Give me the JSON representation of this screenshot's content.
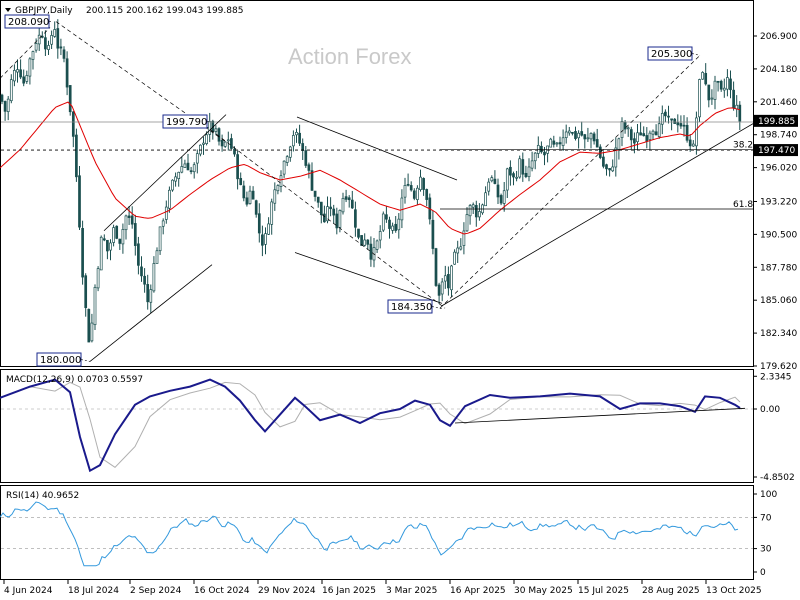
{
  "header": {
    "symbol": "GBPJPY,Daily",
    "ohlc": "200.115 200.162 199.043 199.885"
  },
  "watermark": "Action Forex",
  "macd_label": "MACD(12,26,9) 0.0703 0.5597",
  "rsi_label": "RSI(14) 40.9652",
  "colors": {
    "candle": "#1a4f4f",
    "ma": "#e00000",
    "macd_main": "#1a1a8c",
    "macd_signal": "#b0b0b0",
    "rsi": "#3399dd",
    "current_price_bg": "#000000",
    "level_197_bg": "#000000"
  },
  "chart_data": [
    {
      "type": "candlestick",
      "title": "",
      "ylim": [
        179.62,
        208.6
      ],
      "y_ticks": [
        "206.900",
        "204.180",
        "201.460",
        "198.740",
        "196.020",
        "193.220",
        "190.500",
        "187.780",
        "185.060",
        "182.340",
        "179.620"
      ],
      "x_ticks": [
        "4 Jun 2024",
        "18 Jul 2024",
        "2 Sep 2024",
        "16 Oct 2024",
        "29 Nov 2024",
        "16 Jan 2025",
        "3 Mar 2025",
        "16 Apr 2025",
        "30 May 2025",
        "15 Jul 2025",
        "28 Aug 2025",
        "13 Oct 2025"
      ],
      "last_price": "199.885",
      "level_price": "197.470",
      "annotations": [
        {
          "label": "208.090",
          "value": 208.09
        },
        {
          "label": "199.790",
          "value": 199.79
        },
        {
          "label": "180.000",
          "value": 180.0
        },
        {
          "label": "184.350",
          "value": 184.35
        },
        {
          "label": "205.300",
          "value": 205.3
        }
      ],
      "fib_labels": [
        "38.2",
        "61.8"
      ],
      "fib_levels": [
        197.5,
        192.6
      ],
      "close_path": [
        [
          0,
          202.0
        ],
        [
          6,
          200.5
        ],
        [
          12,
          203.5
        ],
        [
          18,
          204.5
        ],
        [
          24,
          203.0
        ],
        [
          30,
          205.0
        ],
        [
          36,
          206.5
        ],
        [
          42,
          207.2
        ],
        [
          48,
          205.5
        ],
        [
          54,
          208.0
        ],
        [
          58,
          206.0
        ],
        [
          64,
          205.0
        ],
        [
          70,
          201.0
        ],
        [
          74,
          198.0
        ],
        [
          78,
          193.5
        ],
        [
          82,
          188.0
        ],
        [
          86,
          184.0
        ],
        [
          90,
          181.0
        ],
        [
          94,
          185.5
        ],
        [
          98,
          188.0
        ],
        [
          102,
          190.5
        ],
        [
          108,
          189.0
        ],
        [
          114,
          191.0
        ],
        [
          120,
          190.0
        ],
        [
          126,
          192.0
        ],
        [
          132,
          191.5
        ],
        [
          138,
          188.0
        ],
        [
          144,
          186.5
        ],
        [
          148,
          184.8
        ],
        [
          152,
          187.0
        ],
        [
          156,
          189.0
        ],
        [
          162,
          191.5
        ],
        [
          168,
          193.5
        ],
        [
          174,
          195.0
        ],
        [
          180,
          196.0
        ],
        [
          186,
          196.5
        ],
        [
          192,
          195.5
        ],
        [
          198,
          197.0
        ],
        [
          204,
          198.5
        ],
        [
          210,
          199.5
        ],
        [
          216,
          198.8
        ],
        [
          222,
          197.5
        ],
        [
          228,
          198.5
        ],
        [
          234,
          197.0
        ],
        [
          240,
          194.5
        ],
        [
          246,
          193.0
        ],
        [
          252,
          194.5
        ],
        [
          258,
          191.0
        ],
        [
          264,
          189.5
        ],
        [
          270,
          192.5
        ],
        [
          276,
          194.5
        ],
        [
          282,
          196.0
        ],
        [
          288,
          197.5
        ],
        [
          294,
          199.0
        ],
        [
          300,
          198.0
        ],
        [
          306,
          196.5
        ],
        [
          312,
          194.5
        ],
        [
          318,
          193.0
        ],
        [
          324,
          191.5
        ],
        [
          330,
          193.0
        ],
        [
          336,
          191.0
        ],
        [
          342,
          193.5
        ],
        [
          348,
          194.0
        ],
        [
          354,
          192.0
        ],
        [
          360,
          189.5
        ],
        [
          366,
          190.5
        ],
        [
          372,
          188.5
        ],
        [
          378,
          190.0
        ],
        [
          384,
          192.0
        ],
        [
          390,
          191.0
        ],
        [
          396,
          190.5
        ],
        [
          402,
          193.5
        ],
        [
          408,
          195.0
        ],
        [
          414,
          193.5
        ],
        [
          420,
          195.5
        ],
        [
          426,
          194.0
        ],
        [
          432,
          190.0
        ],
        [
          436,
          186.5
        ],
        [
          440,
          185.0
        ],
        [
          444,
          187.5
        ],
        [
          448,
          186.0
        ],
        [
          454,
          188.5
        ],
        [
          460,
          189.5
        ],
        [
          466,
          192.0
        ],
        [
          472,
          193.0
        ],
        [
          478,
          192.0
        ],
        [
          484,
          193.5
        ],
        [
          490,
          195.5
        ],
        [
          496,
          194.0
        ],
        [
          502,
          193.0
        ],
        [
          508,
          196.0
        ],
        [
          514,
          195.0
        ],
        [
          520,
          196.5
        ],
        [
          526,
          195.0
        ],
        [
          532,
          196.5
        ],
        [
          538,
          197.5
        ],
        [
          544,
          197.0
        ],
        [
          550,
          198.0
        ],
        [
          556,
          197.5
        ],
        [
          562,
          198.5
        ],
        [
          568,
          199.5
        ],
        [
          574,
          198.5
        ],
        [
          580,
          199.0
        ],
        [
          586,
          198.0
        ],
        [
          592,
          199.0
        ],
        [
          598,
          197.5
        ],
        [
          604,
          196.0
        ],
        [
          610,
          195.5
        ],
        [
          616,
          197.5
        ],
        [
          622,
          199.5
        ],
        [
          628,
          199.0
        ],
        [
          634,
          198.0
        ],
        [
          640,
          199.0
        ],
        [
          646,
          198.5
        ],
        [
          652,
          199.5
        ],
        [
          658,
          199.0
        ],
        [
          664,
          200.5
        ],
        [
          670,
          199.5
        ],
        [
          676,
          200.0
        ],
        [
          682,
          199.5
        ],
        [
          688,
          198.5
        ],
        [
          694,
          197.5
        ],
        [
          698,
          202.0
        ],
        [
          702,
          204.5
        ],
        [
          706,
          202.5
        ],
        [
          710,
          201.5
        ],
        [
          716,
          203.0
        ],
        [
          722,
          202.0
        ],
        [
          728,
          203.5
        ],
        [
          732,
          201.5
        ],
        [
          736,
          201.0
        ],
        [
          740,
          199.9
        ]
      ],
      "ma_path": [
        [
          0,
          196.0
        ],
        [
          20,
          197.5
        ],
        [
          40,
          199.5
        ],
        [
          55,
          201.0
        ],
        [
          70,
          201.5
        ],
        [
          80,
          199.5
        ],
        [
          95,
          196.5
        ],
        [
          115,
          193.5
        ],
        [
          135,
          192.0
        ],
        [
          150,
          191.8
        ],
        [
          170,
          192.5
        ],
        [
          190,
          193.8
        ],
        [
          210,
          195.0
        ],
        [
          230,
          196.0
        ],
        [
          245,
          196.3
        ],
        [
          260,
          195.6
        ],
        [
          280,
          195.0
        ],
        [
          300,
          195.3
        ],
        [
          320,
          195.8
        ],
        [
          340,
          195.0
        ],
        [
          360,
          194.0
        ],
        [
          380,
          193.0
        ],
        [
          400,
          192.5
        ],
        [
          420,
          193.0
        ],
        [
          435,
          192.4
        ],
        [
          450,
          191.0
        ],
        [
          465,
          190.5
        ],
        [
          480,
          191.0
        ],
        [
          500,
          192.5
        ],
        [
          520,
          193.8
        ],
        [
          540,
          195.0
        ],
        [
          560,
          196.5
        ],
        [
          580,
          197.3
        ],
        [
          600,
          197.2
        ],
        [
          620,
          197.5
        ],
        [
          640,
          198.0
        ],
        [
          660,
          198.5
        ],
        [
          680,
          198.8
        ],
        [
          690,
          198.6
        ],
        [
          700,
          199.5
        ],
        [
          715,
          200.5
        ],
        [
          730,
          201.0
        ],
        [
          740,
          200.8
        ]
      ]
    },
    {
      "type": "line",
      "title": "",
      "y_ticks": [
        "2.3345",
        "0.00",
        "-4.8502"
      ],
      "ylim": [
        -4.8502,
        2.3345
      ]
    },
    {
      "type": "line",
      "title": "",
      "y_ticks": [
        "100",
        "70",
        "30",
        "0"
      ],
      "ylim": [
        0,
        100
      ]
    }
  ]
}
